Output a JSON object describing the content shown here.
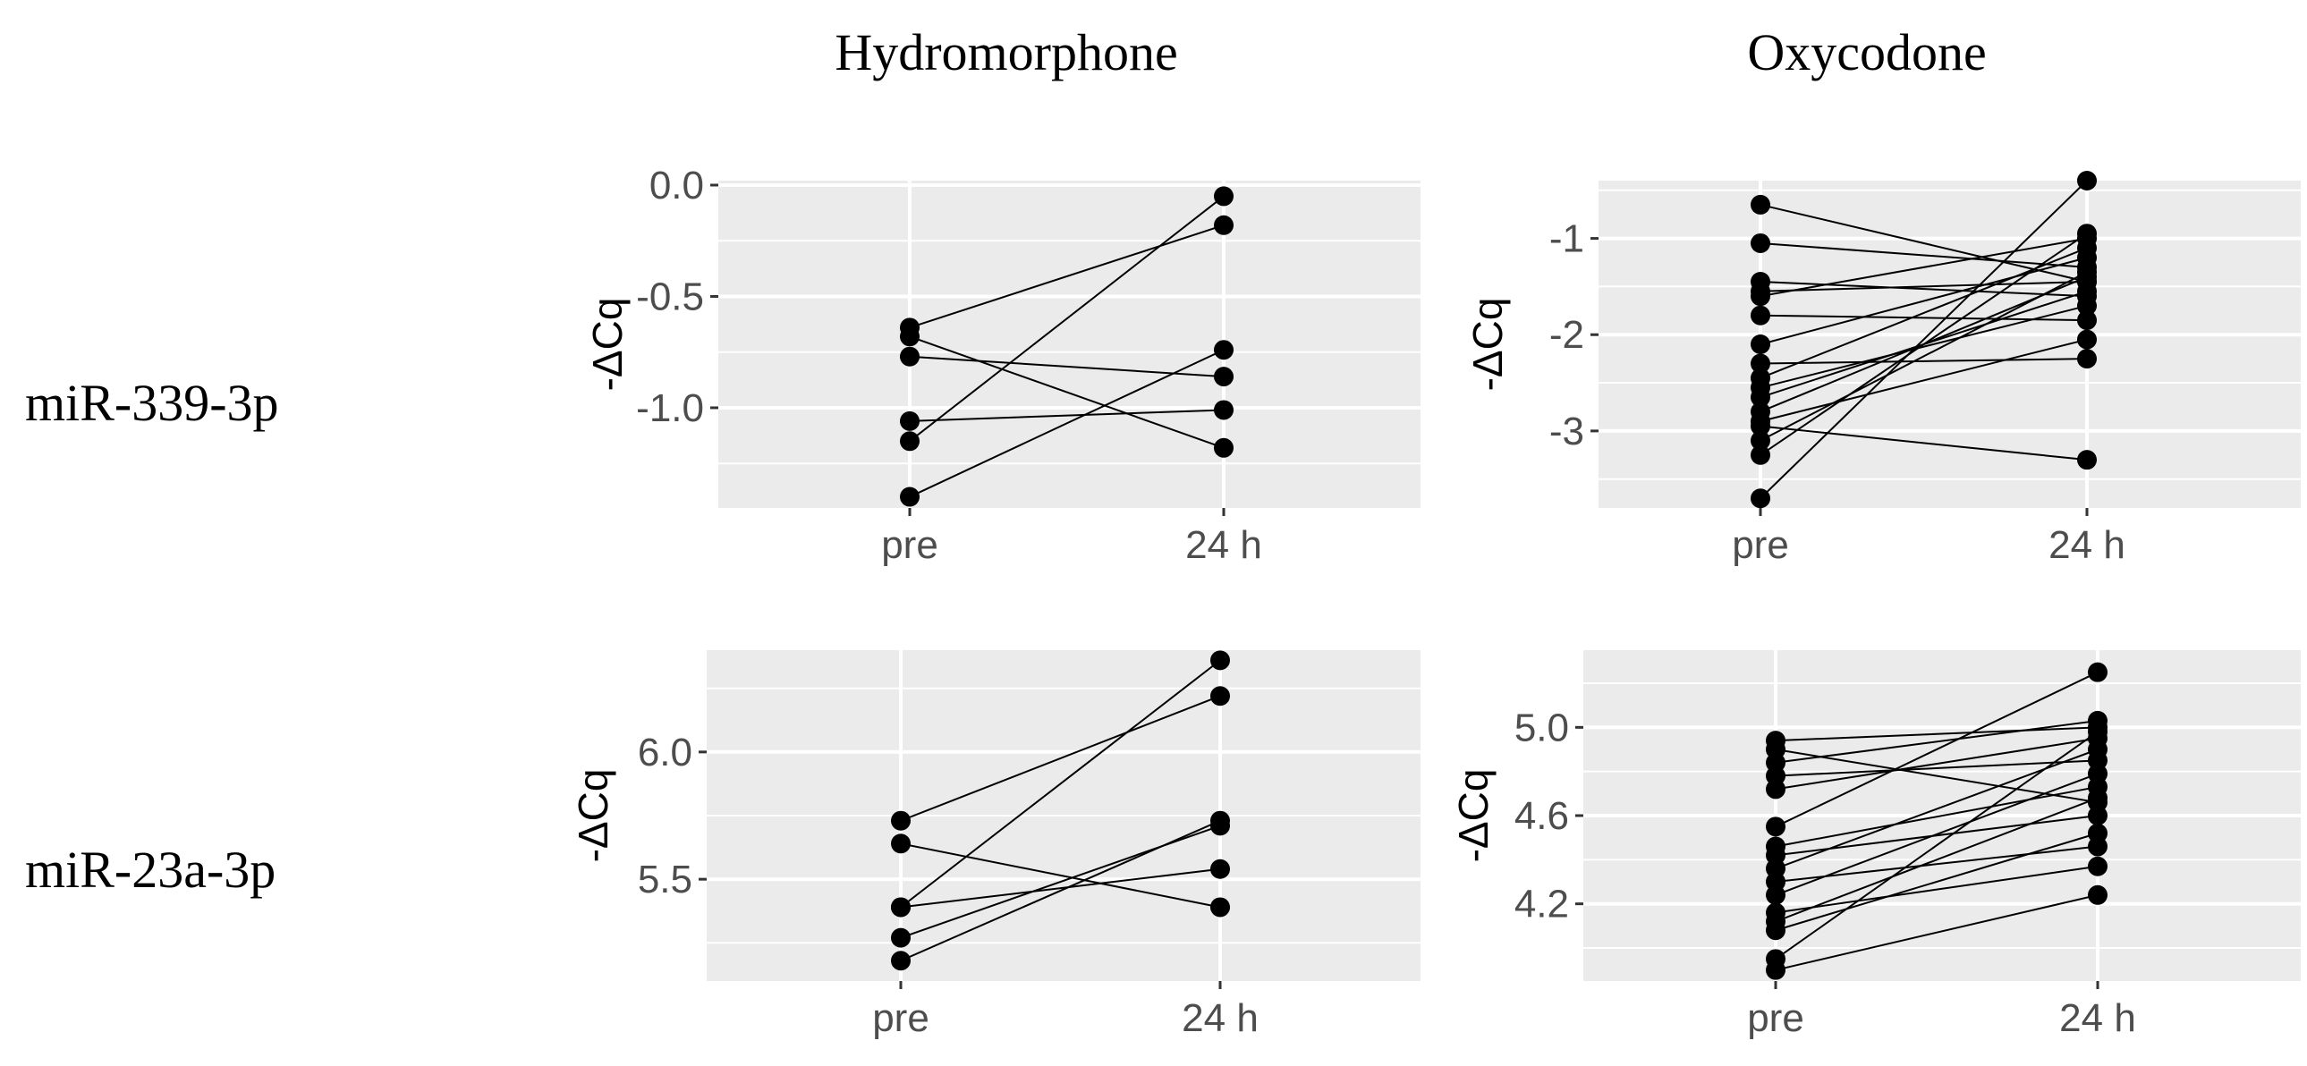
{
  "figure": {
    "column_titles": [
      "Hydromorphone",
      "Oxycodone"
    ],
    "row_labels": [
      "miR-339-3p",
      "miR-23a-3p"
    ]
  },
  "chart_data": [
    {
      "type": "line",
      "title": "Hydromorphone",
      "row_label": "miR-339-3p",
      "xlabel": "",
      "ylabel": "-ΔCq",
      "categories": [
        "pre",
        "24 h"
      ],
      "ylim": [
        -1.45,
        0.02
      ],
      "yticks": [
        0.0,
        -0.5,
        -1.0
      ],
      "ytick_labels": [
        "0.0",
        "-0.5",
        "-1.0"
      ],
      "series": [
        {
          "name": "1",
          "values": [
            -0.64,
            -0.18
          ]
        },
        {
          "name": "2",
          "values": [
            -0.68,
            -1.18
          ]
        },
        {
          "name": "3",
          "values": [
            -0.77,
            -0.86
          ]
        },
        {
          "name": "4",
          "values": [
            -1.06,
            -1.01
          ]
        },
        {
          "name": "5",
          "values": [
            -1.15,
            -0.05
          ]
        },
        {
          "name": "6",
          "values": [
            -1.4,
            -0.74
          ]
        }
      ]
    },
    {
      "type": "line",
      "title": "Oxycodone",
      "row_label": "miR-339-3p",
      "xlabel": "",
      "ylabel": "-ΔCq",
      "categories": [
        "pre",
        "24 h"
      ],
      "ylim": [
        -3.8,
        -0.4
      ],
      "yticks": [
        -1,
        -2,
        -3
      ],
      "ytick_labels": [
        "-1",
        "-2",
        "-3"
      ],
      "series": [
        {
          "name": "1",
          "values": [
            -0.65,
            -1.45
          ]
        },
        {
          "name": "2",
          "values": [
            -1.05,
            -1.3
          ]
        },
        {
          "name": "3",
          "values": [
            -1.45,
            -1.6
          ]
        },
        {
          "name": "4",
          "values": [
            -1.55,
            -1.45
          ]
        },
        {
          "name": "5",
          "values": [
            -1.6,
            -1.0
          ]
        },
        {
          "name": "6",
          "values": [
            -1.8,
            -1.85
          ]
        },
        {
          "name": "7",
          "values": [
            -2.1,
            -1.2
          ]
        },
        {
          "name": "8",
          "values": [
            -2.3,
            -2.25
          ]
        },
        {
          "name": "9",
          "values": [
            -2.45,
            -1.1
          ]
        },
        {
          "name": "10",
          "values": [
            -2.55,
            -1.7
          ]
        },
        {
          "name": "11",
          "values": [
            -2.65,
            -1.55
          ]
        },
        {
          "name": "12",
          "values": [
            -2.8,
            -1.4
          ]
        },
        {
          "name": "13",
          "values": [
            -2.9,
            -2.05
          ]
        },
        {
          "name": "14",
          "values": [
            -2.95,
            -3.3
          ]
        },
        {
          "name": "15",
          "values": [
            -3.1,
            -1.35
          ]
        },
        {
          "name": "16",
          "values": [
            -3.25,
            -0.95
          ]
        },
        {
          "name": "17",
          "values": [
            -3.7,
            -0.4
          ]
        }
      ]
    },
    {
      "type": "line",
      "title": "Hydromorphone",
      "row_label": "miR-23a-3p",
      "xlabel": "",
      "ylabel": "-ΔCq",
      "categories": [
        "pre",
        "24 h"
      ],
      "ylim": [
        5.1,
        6.4
      ],
      "yticks": [
        6.0,
        5.5
      ],
      "ytick_labels": [
        "6.0",
        "5.5"
      ],
      "series": [
        {
          "name": "1",
          "values": [
            5.73,
            6.22
          ]
        },
        {
          "name": "2",
          "values": [
            5.64,
            5.39
          ]
        },
        {
          "name": "3",
          "values": [
            5.39,
            6.36
          ]
        },
        {
          "name": "4",
          "values": [
            5.39,
            5.54
          ]
        },
        {
          "name": "5",
          "values": [
            5.27,
            5.71
          ]
        },
        {
          "name": "6",
          "values": [
            5.18,
            5.73
          ]
        }
      ]
    },
    {
      "type": "line",
      "title": "Oxycodone",
      "row_label": "miR-23a-3p",
      "xlabel": "",
      "ylabel": "-ΔCq",
      "categories": [
        "pre",
        "24 h"
      ],
      "ylim": [
        3.85,
        5.35
      ],
      "yticks": [
        5.0,
        4.6,
        4.2
      ],
      "ytick_labels": [
        "5.0",
        "4.6",
        "4.2"
      ],
      "series": [
        {
          "name": "1",
          "values": [
            4.94,
            5.0
          ]
        },
        {
          "name": "2",
          "values": [
            4.9,
            4.66
          ]
        },
        {
          "name": "3",
          "values": [
            4.84,
            5.03
          ]
        },
        {
          "name": "4",
          "values": [
            4.78,
            4.85
          ]
        },
        {
          "name": "5",
          "values": [
            4.72,
            4.95
          ]
        },
        {
          "name": "6",
          "values": [
            4.55,
            5.25
          ]
        },
        {
          "name": "7",
          "values": [
            4.46,
            4.73
          ]
        },
        {
          "name": "8",
          "values": [
            4.42,
            4.6
          ]
        },
        {
          "name": "9",
          "values": [
            4.36,
            4.9
          ]
        },
        {
          "name": "10",
          "values": [
            4.3,
            4.46
          ]
        },
        {
          "name": "11",
          "values": [
            4.24,
            4.79
          ]
        },
        {
          "name": "12",
          "values": [
            4.16,
            4.37
          ]
        },
        {
          "name": "13",
          "values": [
            4.12,
            4.68
          ]
        },
        {
          "name": "14",
          "values": [
            4.08,
            4.52
          ]
        },
        {
          "name": "15",
          "values": [
            3.95,
            4.98
          ]
        },
        {
          "name": "16",
          "values": [
            3.9,
            4.24
          ]
        }
      ]
    }
  ]
}
